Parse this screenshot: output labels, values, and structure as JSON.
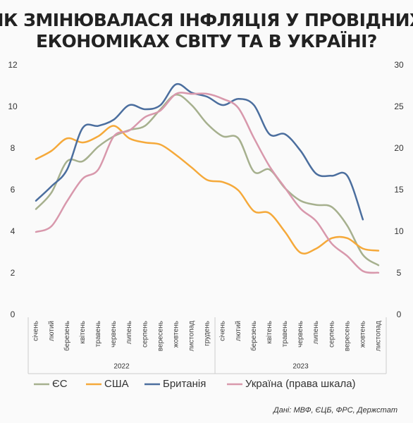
{
  "chart_data": {
    "type": "line",
    "title": [
      "ЯК ЗМІНЮВАЛАСЯ ІНФЛЯЦІЯ У ПРОВІДНИХ",
      "ЕКОНОМІКАХ СВІТУ ТА В УКРАЇНІ?"
    ],
    "categories": [
      "січень",
      "лютий",
      "березень",
      "квітень",
      "травень",
      "червень",
      "липень",
      "серпень",
      "вересень",
      "жовтень",
      "листопад",
      "грудень",
      "січень",
      "лютий",
      "березень",
      "квітень",
      "травень",
      "червень",
      "липень",
      "серпень",
      "вересень",
      "жовтень",
      "листопад"
    ],
    "groups": [
      {
        "label": "2022",
        "count": 12
      },
      {
        "label": "2023",
        "count": 11
      }
    ],
    "ylim": [
      0,
      12
    ],
    "yticks": [
      0,
      2,
      4,
      6,
      8,
      10,
      12
    ],
    "y2lim": [
      0,
      30
    ],
    "y2ticks": [
      0,
      5,
      10,
      15,
      20,
      25,
      30
    ],
    "grid": false,
    "series": [
      {
        "name": "ЄС",
        "color": "#a6b08e",
        "values": [
          5.1,
          5.9,
          7.4,
          7.4,
          8.1,
          8.6,
          8.9,
          9.1,
          9.9,
          10.6,
          10.1,
          9.2,
          8.6,
          8.5,
          6.9,
          7.0,
          6.1,
          5.5,
          5.3,
          5.2,
          4.3,
          2.9,
          2.4
        ]
      },
      {
        "name": "США",
        "color": "#f5a93a",
        "values": [
          7.5,
          7.9,
          8.5,
          8.3,
          8.6,
          9.1,
          8.5,
          8.3,
          8.2,
          7.7,
          7.1,
          6.5,
          6.4,
          6.0,
          5.0,
          4.9,
          4.0,
          3.0,
          3.2,
          3.7,
          3.7,
          3.2,
          3.1
        ]
      },
      {
        "name": "Британія",
        "color": "#4b6e9e",
        "values": [
          5.5,
          6.2,
          7.0,
          9.0,
          9.1,
          9.4,
          10.1,
          9.9,
          10.1,
          11.1,
          10.7,
          10.5,
          10.1,
          10.4,
          10.1,
          8.7,
          8.7,
          7.9,
          6.8,
          6.7,
          6.7,
          4.6,
          null
        ]
      },
      {
        "name": "Україна (права шкала)",
        "color": "#d898ac",
        "axis": "y2",
        "values": [
          10.0,
          10.7,
          13.7,
          16.4,
          17.5,
          21.5,
          22.2,
          23.8,
          24.6,
          26.6,
          26.6,
          26.6,
          26.0,
          24.9,
          21.3,
          17.9,
          15.3,
          12.8,
          11.3,
          8.6,
          7.1,
          5.3,
          5.1
        ]
      }
    ],
    "source": "Дані: МВФ, ЄЦБ, ФРС, Держстат"
  }
}
